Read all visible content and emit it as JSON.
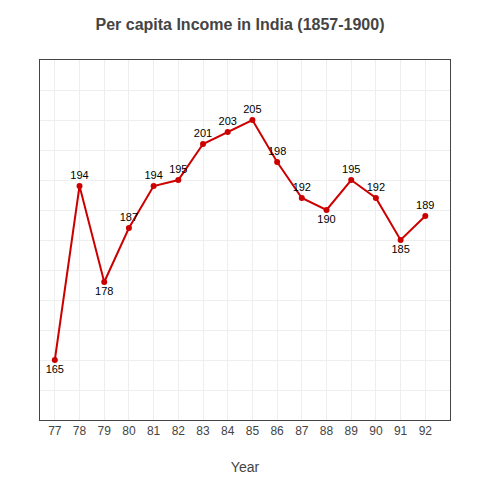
{
  "chart_data": {
    "type": "line",
    "title": "Per capita Income in India (1857-1900)",
    "xlabel": "Year",
    "x": [
      77,
      78,
      79,
      80,
      81,
      82,
      83,
      84,
      85,
      86,
      87,
      88,
      89,
      90,
      91,
      92
    ],
    "values": [
      165,
      194,
      178,
      187,
      194,
      195,
      201,
      203,
      205,
      198,
      192,
      190,
      195,
      192,
      185,
      189
    ],
    "color": "#cc0000",
    "marker": "circle",
    "line_style": "solid",
    "xlim": [
      76.4,
      93
    ],
    "ylim": [
      155,
      215
    ],
    "xticks": [
      77,
      78,
      79,
      80,
      81,
      82,
      83,
      84,
      85,
      86,
      87,
      88,
      89,
      90,
      91,
      92
    ],
    "yticks": [
      155,
      160,
      165,
      170,
      175,
      180,
      185,
      190,
      195,
      200,
      205,
      210,
      215
    ],
    "grid": true,
    "data_labels": true,
    "tick_labels": "x"
  }
}
